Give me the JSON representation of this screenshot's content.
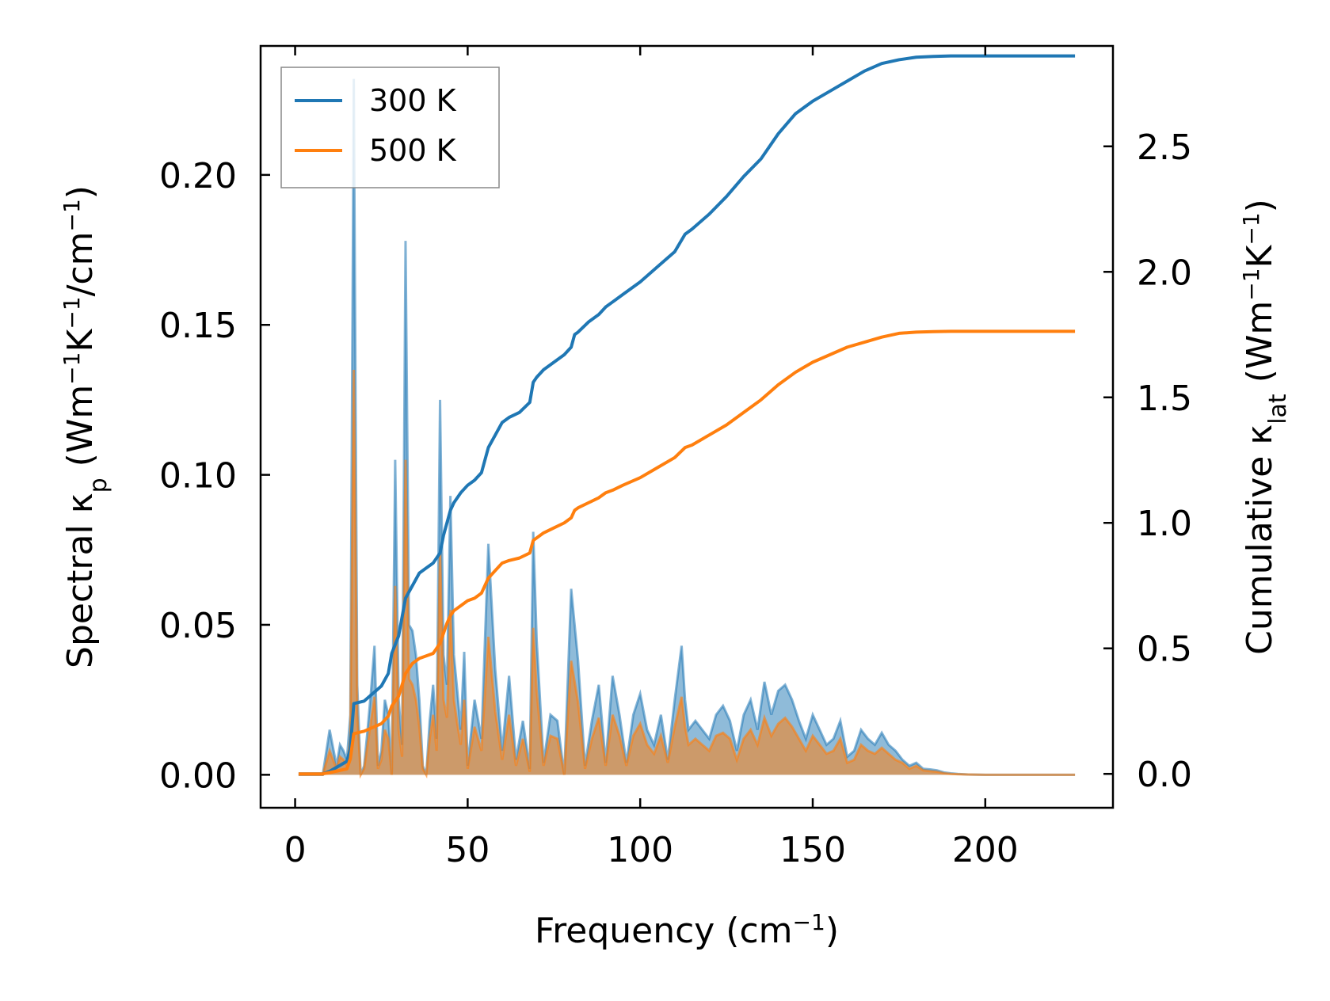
{
  "chart_data": {
    "type": "line",
    "xlabel": "Frequency (cm⁻¹)",
    "ylabel_left": "Spectral κₚ (Wm⁻¹K⁻¹/cm⁻¹)",
    "ylabel_right": "Cumulative κ_lat (Wm⁻¹K⁻¹)",
    "xlim": [
      -10,
      237
    ],
    "ylim_left": [
      -0.011,
      0.243
    ],
    "ylim_right": [
      -0.135,
      2.9
    ],
    "x_ticks": [
      0,
      50,
      100,
      150,
      200
    ],
    "x_tick_labels": [
      "0",
      "50",
      "100",
      "150",
      "200"
    ],
    "y_left_ticks": [
      0,
      0.05,
      0.1,
      0.15,
      0.2
    ],
    "y_left_tick_labels": [
      "0.00",
      "0.05",
      "0.10",
      "0.15",
      "0.20"
    ],
    "y_right_ticks": [
      0,
      0.5,
      1.0,
      1.5,
      2.0,
      2.5
    ],
    "y_right_tick_labels": [
      "0.0",
      "0.5",
      "1.0",
      "1.5",
      "2.0",
      "2.5"
    ],
    "legend": {
      "position": "top-left",
      "entries": [
        {
          "label": "300 K",
          "color": "#1f77b4"
        },
        {
          "label": "500 K",
          "color": "#ff7f0e"
        }
      ]
    },
    "colors": {
      "c300": "#1f77b4",
      "c500": "#ff7f0e"
    },
    "spectral": {
      "x": [
        1,
        8,
        10,
        12,
        13,
        14,
        15,
        16,
        17,
        18,
        19,
        20,
        21,
        22,
        23,
        24,
        25,
        26,
        27,
        28,
        29,
        30,
        31,
        32,
        33,
        34,
        35,
        36,
        37,
        38,
        39,
        40,
        41,
        42,
        43,
        44,
        45,
        46,
        47,
        48,
        49,
        50,
        52,
        54,
        56,
        58,
        60,
        62,
        64,
        66,
        68,
        69,
        70,
        72,
        74,
        76,
        78,
        80,
        81,
        82,
        84,
        86,
        88,
        90,
        92,
        94,
        96,
        98,
        100,
        102,
        104,
        106,
        108,
        110,
        112,
        113,
        114,
        116,
        118,
        120,
        122,
        124,
        126,
        128,
        130,
        132,
        134,
        136,
        138,
        140,
        142,
        144,
        146,
        148,
        150,
        152,
        154,
        156,
        158,
        160,
        162,
        164,
        166,
        168,
        170,
        172,
        174,
        176,
        178,
        180,
        182,
        184,
        186,
        188,
        190,
        192,
        195,
        200,
        210,
        220,
        226
      ],
      "s300": [
        0,
        0,
        0.015,
        0.003,
        0.01,
        0.008,
        0.005,
        0.02,
        0.232,
        0.03,
        0,
        0.003,
        0.015,
        0.028,
        0.043,
        0.003,
        0.008,
        0.025,
        0.02,
        0,
        0.105,
        0.025,
        0.01,
        0.178,
        0.05,
        0.048,
        0.04,
        0.025,
        0.003,
        0,
        0.018,
        0.03,
        0.012,
        0.125,
        0.04,
        0.03,
        0.093,
        0.04,
        0.028,
        0.015,
        0.041,
        0.003,
        0.025,
        0.012,
        0.077,
        0.035,
        0.008,
        0.033,
        0.005,
        0.018,
        0.002,
        0.081,
        0.045,
        0.004,
        0.02,
        0.018,
        0,
        0.062,
        0.05,
        0.038,
        0.003,
        0.018,
        0.03,
        0.004,
        0.033,
        0.02,
        0.004,
        0.02,
        0.027,
        0.015,
        0.01,
        0.02,
        0.005,
        0.025,
        0.043,
        0.025,
        0.015,
        0.018,
        0.015,
        0.012,
        0.02,
        0.023,
        0.018,
        0.008,
        0.02,
        0.025,
        0.015,
        0.031,
        0.02,
        0.028,
        0.03,
        0.025,
        0.018,
        0.012,
        0.02,
        0.015,
        0.01,
        0.012,
        0.018,
        0.006,
        0.008,
        0.015,
        0.012,
        0.01,
        0.014,
        0.01,
        0.008,
        0.005,
        0.003,
        0.004,
        0.002,
        0.0018,
        0.0015,
        0.0008,
        0.0005,
        0.0003,
        0.0001,
        0,
        0,
        0,
        0
      ],
      "s500": [
        0,
        0,
        0.008,
        0.002,
        0.006,
        0.005,
        0.003,
        0.012,
        0.135,
        0.02,
        0,
        0.002,
        0.01,
        0.018,
        0.026,
        0.002,
        0.005,
        0.015,
        0.012,
        0,
        0.063,
        0.015,
        0.006,
        0.105,
        0.032,
        0.03,
        0.025,
        0.016,
        0.002,
        0,
        0.012,
        0.02,
        0.008,
        0.075,
        0.025,
        0.019,
        0.055,
        0.025,
        0.017,
        0.01,
        0.025,
        0.002,
        0.016,
        0.008,
        0.046,
        0.021,
        0.005,
        0.02,
        0.003,
        0.012,
        0.001,
        0.049,
        0.028,
        0.003,
        0.013,
        0.012,
        0,
        0.038,
        0.031,
        0.024,
        0.002,
        0.012,
        0.019,
        0.003,
        0.02,
        0.013,
        0.003,
        0.013,
        0.017,
        0.01,
        0.007,
        0.013,
        0.004,
        0.016,
        0.026,
        0.016,
        0.01,
        0.012,
        0.01,
        0.008,
        0.013,
        0.014,
        0.012,
        0.005,
        0.012,
        0.015,
        0.01,
        0.019,
        0.013,
        0.017,
        0.019,
        0.016,
        0.012,
        0.008,
        0.013,
        0.01,
        0.007,
        0.008,
        0.012,
        0.004,
        0.005,
        0.01,
        0.008,
        0.007,
        0.009,
        0.007,
        0.005,
        0.004,
        0.002,
        0.003,
        0.0015,
        0.0012,
        0.001,
        0.0005,
        0.0003,
        0.0002,
        0.0001,
        0,
        0,
        0,
        0
      ]
    },
    "cumulative": {
      "x": [
        1,
        8,
        10,
        15,
        16,
        17,
        20,
        25,
        27,
        28,
        30,
        32,
        34,
        36,
        38,
        40,
        41,
        42,
        43,
        44,
        45,
        46,
        48,
        50,
        52,
        54,
        56,
        58,
        60,
        62,
        65,
        68,
        69,
        70,
        72,
        75,
        78,
        80,
        81,
        82,
        85,
        88,
        90,
        92,
        95,
        100,
        105,
        110,
        113,
        115,
        120,
        125,
        130,
        135,
        140,
        145,
        150,
        155,
        160,
        165,
        170,
        175,
        180,
        185,
        190,
        200,
        210,
        226
      ],
      "k300": [
        0,
        0,
        0.01,
        0.05,
        0.1,
        0.28,
        0.29,
        0.35,
        0.4,
        0.48,
        0.55,
        0.7,
        0.75,
        0.8,
        0.82,
        0.84,
        0.86,
        0.88,
        0.95,
        1.0,
        1.05,
        1.08,
        1.12,
        1.15,
        1.17,
        1.2,
        1.3,
        1.35,
        1.4,
        1.42,
        1.44,
        1.48,
        1.56,
        1.58,
        1.61,
        1.64,
        1.67,
        1.7,
        1.75,
        1.76,
        1.8,
        1.83,
        1.86,
        1.88,
        1.91,
        1.96,
        2.02,
        2.08,
        2.15,
        2.17,
        2.23,
        2.3,
        2.38,
        2.45,
        2.55,
        2.63,
        2.68,
        2.72,
        2.76,
        2.8,
        2.83,
        2.845,
        2.855,
        2.858,
        2.86,
        2.86,
        2.86,
        2.86
      ],
      "k500": [
        0,
        0,
        0.005,
        0.02,
        0.06,
        0.16,
        0.17,
        0.2,
        0.23,
        0.27,
        0.31,
        0.4,
        0.44,
        0.46,
        0.47,
        0.48,
        0.5,
        0.52,
        0.56,
        0.6,
        0.63,
        0.65,
        0.67,
        0.69,
        0.7,
        0.72,
        0.78,
        0.81,
        0.84,
        0.85,
        0.86,
        0.88,
        0.93,
        0.94,
        0.96,
        0.98,
        1.0,
        1.02,
        1.05,
        1.06,
        1.08,
        1.1,
        1.12,
        1.13,
        1.15,
        1.18,
        1.22,
        1.26,
        1.3,
        1.31,
        1.35,
        1.39,
        1.44,
        1.49,
        1.55,
        1.6,
        1.64,
        1.67,
        1.7,
        1.72,
        1.74,
        1.755,
        1.76,
        1.762,
        1.763,
        1.763,
        1.763,
        1.763
      ]
    }
  }
}
